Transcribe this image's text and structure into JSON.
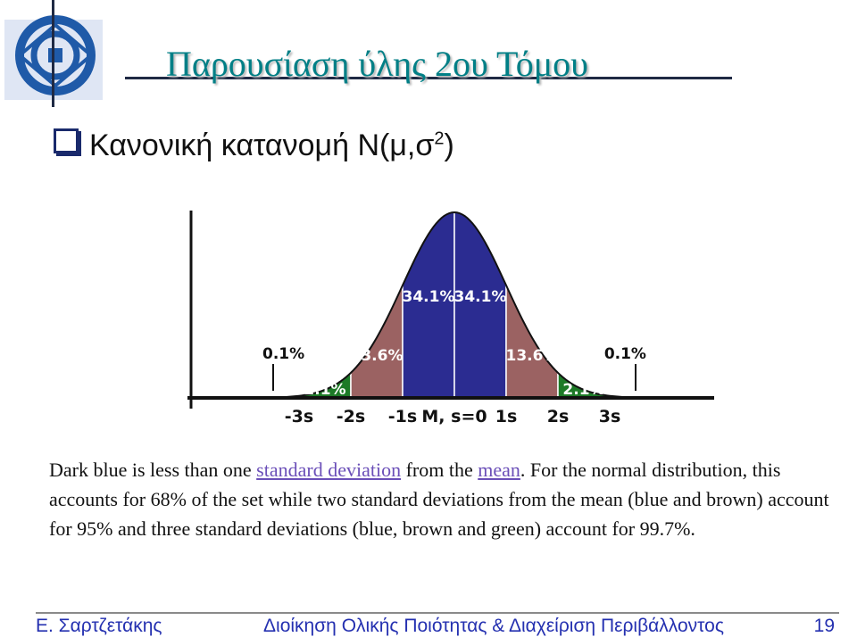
{
  "slide": {
    "title": "Παρουσίαση ύλης 2ου Τόμου",
    "bullet_text": "Κανονική κατανομή Ν(μ,σ",
    "bullet_sup": "2",
    "bullet_close": ")"
  },
  "paragraph": {
    "p1": "Dark blue is less than one ",
    "link1": "standard deviation",
    "p2": " from the ",
    "link2": "mean",
    "p3": ". For the normal distribution, this accounts for 68% of the set while two standard deviations from the mean (blue and brown) account for 95% and three standard deviations (blue, brown and green) account for 99.7%."
  },
  "footer": {
    "author": "Ε. Σαρτζετάκης",
    "course": "Διοίκηση Ολικής Ποιότητας & Διαχείριση Περιβάλλοντος",
    "page": "19"
  },
  "colors": {
    "title": "#007f86",
    "dark_blue": "#2b2c91",
    "brown": "#9b6262",
    "green": "#1d7a27",
    "tail": "#c4c4e6",
    "footer": "#2430b0",
    "link": "#6b4fb8"
  },
  "chart_data": {
    "type": "area",
    "x_range": [
      -4,
      4
    ],
    "ticks": [
      {
        "x": -3,
        "label": "-3s"
      },
      {
        "x": -2,
        "label": "-2s"
      },
      {
        "x": -1,
        "label": "-1s"
      },
      {
        "x": 0,
        "label": "M, s=0"
      },
      {
        "x": 1,
        "label": "1s"
      },
      {
        "x": 2,
        "label": "2s"
      },
      {
        "x": 3,
        "label": "3s"
      }
    ],
    "regions": [
      {
        "from": -4,
        "to": -3,
        "color": "#c4c4e6",
        "percent": "0.1%"
      },
      {
        "from": -3,
        "to": -2,
        "color": "#1d7a27",
        "percent": "2.1%"
      },
      {
        "from": -2,
        "to": -1,
        "color": "#9b6262",
        "percent": "13.6%"
      },
      {
        "from": -1,
        "to": 0,
        "color": "#2b2c91",
        "percent": "34.1%"
      },
      {
        "from": 0,
        "to": 1,
        "color": "#2b2c91",
        "percent": "34.1%"
      },
      {
        "from": 1,
        "to": 2,
        "color": "#9b6262",
        "percent": "13.6%"
      },
      {
        "from": 2,
        "to": 3,
        "color": "#1d7a27",
        "percent": "2.1%"
      },
      {
        "from": 3,
        "to": 4,
        "color": "#c4c4e6",
        "percent": "0.1%"
      }
    ]
  }
}
